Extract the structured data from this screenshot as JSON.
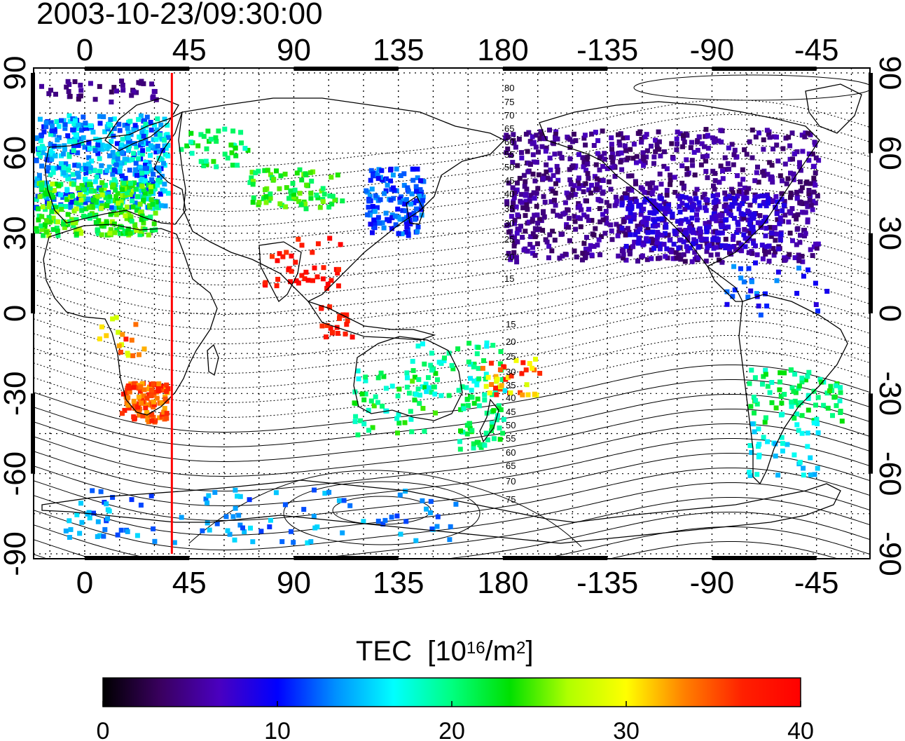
{
  "title": "2003-10-23/09:30:00",
  "colors": {
    "sun_line": "#ff0000",
    "coast": "#000000",
    "colormap": [
      "#000000",
      "#3a0060",
      "#4a00c0",
      "#0000ff",
      "#0090ff",
      "#00ffff",
      "#00ff80",
      "#00e000",
      "#b0ff00",
      "#ffff00",
      "#ff8000",
      "#ff2000",
      "#ff0000"
    ]
  },
  "map": {
    "lon_labels": [
      "0",
      "45",
      "90",
      "135",
      "180",
      "-135",
      "-90",
      "-45"
    ],
    "lat_labels": [
      "90",
      "60",
      "30",
      "0",
      "-30",
      "-60",
      "-90"
    ],
    "lat_labels_right": [
      "90",
      "60",
      "30",
      "0",
      "-30",
      "-60",
      "-90"
    ],
    "subsolar_line_lon": 37.5,
    "contours_north": [
      "80",
      "75",
      "70",
      "65",
      "60",
      "55",
      "50",
      "45",
      "40",
      "35",
      "30",
      "25",
      "20",
      "15"
    ],
    "contours_south": [
      "15",
      "20",
      "25",
      "30",
      "35",
      "40",
      "45",
      "50",
      "55",
      "60",
      "65",
      "70",
      "75"
    ]
  },
  "colorbar": {
    "title": "TEC",
    "unit_prefix": "[10",
    "unit_exp": "16",
    "unit_mid": "/m",
    "unit_exp2": "2",
    "unit_suffix": "]",
    "tick_labels": [
      "0",
      "10",
      "20",
      "30",
      "40"
    ],
    "min": 0,
    "max": 40
  }
}
